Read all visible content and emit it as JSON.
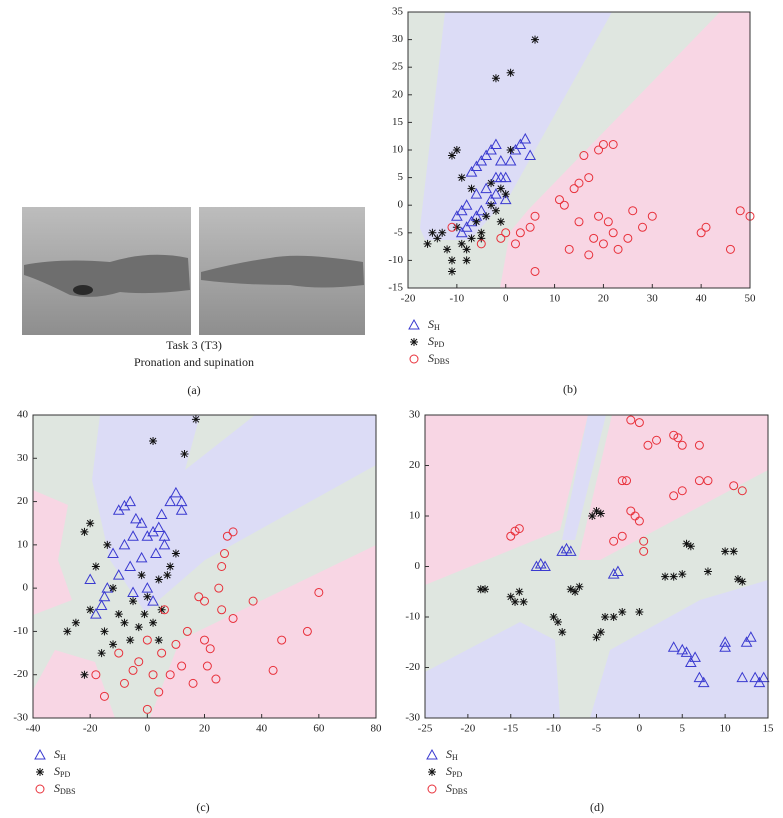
{
  "panel_a": {
    "caption": [
      "Task 3 (T3)",
      "Pronation and supination"
    ],
    "label": "(a)"
  },
  "chart_data": [
    {
      "type": "scatter",
      "panel_label": "(b)",
      "xlim": [
        -20,
        50
      ],
      "ylim": [
        -15,
        35
      ],
      "xticks": [
        -20,
        -10,
        0,
        10,
        20,
        30,
        40,
        50
      ],
      "yticks": [
        -15,
        -10,
        -5,
        0,
        5,
        10,
        15,
        20,
        25,
        30,
        35
      ],
      "series": [
        {
          "name": "SH",
          "marker": "triangle",
          "color": "#3a3ad0",
          "x": [
            -10,
            -9,
            -8,
            -7,
            -6,
            -5,
            -6,
            -4,
            -3,
            -2,
            -1,
            0,
            1,
            -5,
            -4,
            -3,
            -2,
            -6,
            -7,
            2,
            4,
            3,
            5,
            -1,
            0,
            -2,
            -8,
            -9
          ],
          "values": [
            -2,
            -1,
            0,
            -3,
            -2,
            -1,
            2,
            3,
            1,
            5,
            5,
            5,
            8,
            8,
            9,
            10,
            11,
            7,
            6,
            10,
            12,
            11,
            9,
            8,
            1,
            2,
            -4,
            -5
          ]
        },
        {
          "name": "SPD",
          "marker": "star",
          "color": "#111111",
          "x": [
            -15,
            -14,
            -13,
            -12,
            -11,
            -11,
            -10,
            -9,
            -8,
            -7,
            -6,
            -5,
            -4,
            -3,
            -2,
            -1,
            0,
            -10,
            -11,
            -9,
            -2,
            1,
            6,
            -3,
            -5,
            -16,
            -8,
            -1,
            1,
            -7
          ],
          "values": [
            -5,
            -6,
            -5,
            -8,
            -12,
            -10,
            -4,
            -7,
            -8,
            -6,
            -3,
            -5,
            -2,
            0,
            -1,
            3,
            2,
            10,
            9,
            5,
            23,
            24,
            30,
            4,
            -6,
            -7,
            -10,
            -3,
            10,
            3
          ]
        },
        {
          "name": "SDBS",
          "marker": "circle",
          "color": "#e8303a",
          "x": [
            -11,
            -5,
            -1,
            0,
            2,
            3,
            5,
            6,
            6,
            11,
            12,
            13,
            14,
            15,
            15,
            16,
            17,
            17,
            18,
            19,
            20,
            20,
            21,
            22,
            22,
            23,
            25,
            26,
            28,
            40,
            41,
            46,
            48,
            50,
            30,
            19
          ],
          "values": [
            -4,
            -7,
            -6,
            -5,
            -7,
            -5,
            -4,
            -2,
            -12,
            1,
            0,
            -8,
            3,
            -3,
            4,
            9,
            5,
            -9,
            -6,
            10,
            11,
            -7,
            -3,
            -5,
            11,
            -8,
            -6,
            -1,
            -4,
            -5,
            -4,
            -8,
            -1,
            -2,
            -2,
            -2
          ]
        }
      ]
    },
    {
      "type": "scatter",
      "panel_label": "(c)",
      "xlim": [
        -40,
        80
      ],
      "ylim": [
        -30,
        40
      ],
      "xticks": [
        -40,
        -20,
        0,
        20,
        40,
        60,
        80
      ],
      "yticks": [
        -30,
        -20,
        -10,
        0,
        10,
        20,
        30,
        40
      ],
      "series": [
        {
          "name": "SH",
          "marker": "triangle",
          "color": "#3a3ad0",
          "x": [
            -10,
            -8,
            -6,
            -4,
            -2,
            0,
            2,
            4,
            6,
            8,
            10,
            12,
            5,
            -5,
            -8,
            -12,
            -10,
            -15,
            -18,
            -20,
            -14,
            -6,
            -2,
            3,
            0,
            -5,
            -16,
            2,
            6,
            12
          ],
          "values": [
            18,
            19,
            20,
            16,
            15,
            12,
            13,
            14,
            12,
            20,
            22,
            20,
            17,
            12,
            10,
            8,
            3,
            -2,
            -6,
            2,
            0,
            5,
            7,
            8,
            0,
            -1,
            -4,
            -3,
            10,
            18
          ]
        },
        {
          "name": "SPD",
          "marker": "star",
          "color": "#111111",
          "x": [
            -28,
            -25,
            -22,
            -22,
            -20,
            -18,
            -16,
            -15,
            -14,
            -12,
            -10,
            -8,
            -6,
            -5,
            -3,
            -1,
            0,
            2,
            4,
            5,
            7,
            8,
            10,
            2,
            13,
            17,
            -12,
            -20,
            -2,
            4
          ],
          "values": [
            -10,
            -8,
            -20,
            13,
            15,
            5,
            -15,
            -10,
            10,
            0,
            -6,
            -8,
            -12,
            -3,
            -9,
            -6,
            -2,
            -8,
            -12,
            -5,
            3,
            5,
            8,
            34,
            31,
            39,
            -13,
            -5,
            3,
            2
          ]
        },
        {
          "name": "SDBS",
          "marker": "circle",
          "color": "#e8303a",
          "x": [
            -18,
            -15,
            -10,
            -8,
            -5,
            -3,
            0,
            0,
            2,
            4,
            5,
            6,
            8,
            10,
            12,
            14,
            16,
            18,
            20,
            21,
            22,
            24,
            25,
            26,
            27,
            28,
            30,
            30,
            37,
            44,
            47,
            56,
            60,
            26,
            20
          ],
          "values": [
            -20,
            -25,
            -15,
            -22,
            -19,
            -17,
            -12,
            -28,
            -20,
            -24,
            -15,
            -5,
            -20,
            -13,
            -18,
            -10,
            -22,
            -2,
            -3,
            -18,
            -14,
            -21,
            0,
            -5,
            8,
            12,
            13,
            -7,
            -3,
            -19,
            -12,
            -10,
            -1,
            5,
            -12
          ]
        }
      ]
    },
    {
      "type": "scatter",
      "panel_label": "(d)",
      "xlim": [
        -25,
        15
      ],
      "ylim": [
        -30,
        30
      ],
      "xticks": [
        -25,
        -20,
        -15,
        -10,
        -5,
        0,
        5,
        10,
        15
      ],
      "yticks": [
        -30,
        -20,
        -10,
        0,
        10,
        20,
        30
      ],
      "series": [
        {
          "name": "SH",
          "marker": "triangle",
          "color": "#3a3ad0",
          "x": [
            -12,
            -11.5,
            -11,
            -9,
            -8.5,
            -8,
            -3,
            -2.5,
            4,
            5,
            5.5,
            6,
            6.5,
            7,
            7.5,
            10,
            10,
            12,
            12.5,
            13,
            13.5,
            14,
            14.5
          ],
          "values": [
            0,
            0.5,
            0,
            3,
            3.5,
            3,
            -1.5,
            -1,
            -16,
            -16.5,
            -17,
            -19,
            -18,
            -22,
            -23,
            -15,
            -16,
            -22,
            -15,
            -14,
            -22,
            -23,
            -22
          ]
        },
        {
          "name": "SPD",
          "marker": "star",
          "color": "#111111",
          "x": [
            -18.5,
            -18,
            -15,
            -14,
            -14.5,
            -13.5,
            -10,
            -9.5,
            -9,
            -8,
            -7.5,
            -7,
            -5,
            -4.5,
            -4,
            -3,
            -2,
            -5.5,
            -5,
            -4.5,
            4,
            5,
            5.5,
            6,
            8,
            10,
            11,
            11.5,
            12,
            3,
            0
          ],
          "values": [
            -4.5,
            -4.5,
            -6,
            -5,
            -7,
            -7,
            -10,
            -11,
            -13,
            -4.5,
            -5,
            -4,
            -14,
            -13,
            -10,
            -10,
            -9,
            10,
            11,
            10.5,
            -2,
            -1.5,
            4.5,
            4,
            -1,
            3,
            3,
            -2.5,
            -3,
            -2,
            -9
          ]
        },
        {
          "name": "SDBS",
          "marker": "circle",
          "color": "#e8303a",
          "x": [
            -15,
            -14.5,
            -14,
            -2,
            -1.5,
            -1,
            -0.5,
            0,
            0.5,
            0.5,
            -1,
            0,
            -3,
            1,
            2,
            4,
            4.5,
            5,
            4,
            5,
            7,
            7,
            8,
            11,
            12,
            -2
          ],
          "values": [
            6,
            7,
            7.5,
            17,
            17,
            11,
            10,
            9,
            5,
            3,
            29,
            28.5,
            5,
            24,
            25,
            26,
            25.5,
            24,
            14,
            15,
            24,
            17,
            17,
            16,
            15,
            6
          ]
        }
      ]
    }
  ]
}
